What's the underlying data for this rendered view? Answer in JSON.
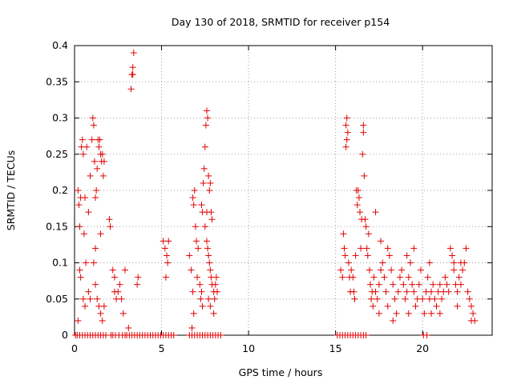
{
  "chart_data": {
    "type": "scatter",
    "title": "Day 130 of 2018, SRMTID for receiver p154",
    "xlabel": "GPS time / hours",
    "ylabel": "SRMTID / TECUs",
    "xlim": [
      0,
      24
    ],
    "ylim": [
      0,
      0.4
    ],
    "x_ticks": [
      0,
      5,
      10,
      15,
      20
    ],
    "x_tick_labels": [
      "0",
      "5",
      "10",
      "15",
      "20"
    ],
    "y_ticks": [
      0,
      0.05,
      0.1,
      0.15,
      0.2,
      0.25,
      0.3,
      0.35,
      0.4
    ],
    "y_tick_labels": [
      "0",
      "0.05",
      "0.1",
      "0.15",
      "0.2",
      "0.25",
      "0.3",
      "0.35",
      "0.4"
    ],
    "grid": true,
    "marker": "+",
    "color": "#e00000",
    "series": [
      {
        "name": "SRMTID",
        "points": [
          [
            0.2,
            0.2
          ],
          [
            0.25,
            0.18
          ],
          [
            0.3,
            0.15
          ],
          [
            0.35,
            0.19
          ],
          [
            0.4,
            0.26
          ],
          [
            0.45,
            0.27
          ],
          [
            0.5,
            0.25
          ],
          [
            0.55,
            0.14
          ],
          [
            0.6,
            0.19
          ],
          [
            0.65,
            0.1
          ],
          [
            0.3,
            0.09
          ],
          [
            0.35,
            0.08
          ],
          [
            0.5,
            0.05
          ],
          [
            0.6,
            0.04
          ],
          [
            0.2,
            0.02
          ],
          [
            0.7,
            0.26
          ],
          [
            0.8,
            0.17
          ],
          [
            0.9,
            0.22
          ],
          [
            1.0,
            0.27
          ],
          [
            1.05,
            0.3
          ],
          [
            1.1,
            0.29
          ],
          [
            1.15,
            0.24
          ],
          [
            1.2,
            0.19
          ],
          [
            1.25,
            0.2
          ],
          [
            1.3,
            0.23
          ],
          [
            1.35,
            0.27
          ],
          [
            1.4,
            0.26
          ],
          [
            1.45,
            0.27
          ],
          [
            1.5,
            0.25
          ],
          [
            1.55,
            0.24
          ],
          [
            1.6,
            0.25
          ],
          [
            1.65,
            0.22
          ],
          [
            1.7,
            0.24
          ],
          [
            1.1,
            0.1
          ],
          [
            1.2,
            0.07
          ],
          [
            1.3,
            0.05
          ],
          [
            1.4,
            0.04
          ],
          [
            1.5,
            0.03
          ],
          [
            1.6,
            0.02
          ],
          [
            1.7,
            0.04
          ],
          [
            1.5,
            0.14
          ],
          [
            1.2,
            0.12
          ],
          [
            0.8,
            0.06
          ],
          [
            0.9,
            0.05
          ],
          [
            2.0,
            0.16
          ],
          [
            2.05,
            0.15
          ],
          [
            2.3,
            0.06
          ],
          [
            2.4,
            0.05
          ],
          [
            2.5,
            0.06
          ],
          [
            2.6,
            0.07
          ],
          [
            2.2,
            0.09
          ],
          [
            2.3,
            0.08
          ],
          [
            2.7,
            0.05
          ],
          [
            2.8,
            0.03
          ],
          [
            2.9,
            0.09
          ],
          [
            3.1,
            0.01
          ],
          [
            3.25,
            0.34
          ],
          [
            3.3,
            0.36
          ],
          [
            3.35,
            0.37
          ],
          [
            3.4,
            0.39
          ],
          [
            3.35,
            0.36
          ],
          [
            3.6,
            0.07
          ],
          [
            3.65,
            0.08
          ],
          [
            5.1,
            0.13
          ],
          [
            5.2,
            0.12
          ],
          [
            5.3,
            0.11
          ],
          [
            5.35,
            0.1
          ],
          [
            5.4,
            0.13
          ],
          [
            5.25,
            0.08
          ],
          [
            6.6,
            0.11
          ],
          [
            6.7,
            0.09
          ],
          [
            6.8,
            0.19
          ],
          [
            6.85,
            0.18
          ],
          [
            6.9,
            0.2
          ],
          [
            6.95,
            0.15
          ],
          [
            7.0,
            0.13
          ],
          [
            7.05,
            0.08
          ],
          [
            6.8,
            0.06
          ],
          [
            6.85,
            0.03
          ],
          [
            6.75,
            0.01
          ],
          [
            7.1,
            0.12
          ],
          [
            7.2,
            0.07
          ],
          [
            7.25,
            0.05
          ],
          [
            7.3,
            0.06
          ],
          [
            7.35,
            0.04
          ],
          [
            7.3,
            0.18
          ],
          [
            7.35,
            0.17
          ],
          [
            7.4,
            0.21
          ],
          [
            7.45,
            0.23
          ],
          [
            7.5,
            0.26
          ],
          [
            7.55,
            0.29
          ],
          [
            7.6,
            0.31
          ],
          [
            7.65,
            0.3
          ],
          [
            7.7,
            0.22
          ],
          [
            7.75,
            0.2
          ],
          [
            7.8,
            0.21
          ],
          [
            7.85,
            0.17
          ],
          [
            7.9,
            0.16
          ],
          [
            7.5,
            0.15
          ],
          [
            7.6,
            0.13
          ],
          [
            7.65,
            0.12
          ],
          [
            7.7,
            0.11
          ],
          [
            7.75,
            0.1
          ],
          [
            7.8,
            0.09
          ],
          [
            7.85,
            0.08
          ],
          [
            7.9,
            0.07
          ],
          [
            8.0,
            0.06
          ],
          [
            8.1,
            0.07
          ],
          [
            8.15,
            0.08
          ],
          [
            8.2,
            0.06
          ],
          [
            7.7,
            0.05
          ],
          [
            7.8,
            0.04
          ],
          [
            8.0,
            0.03
          ],
          [
            7.6,
            0.17
          ],
          [
            8.05,
            0.05
          ],
          [
            15.3,
            0.09
          ],
          [
            15.4,
            0.08
          ],
          [
            15.45,
            0.14
          ],
          [
            15.5,
            0.12
          ],
          [
            15.55,
            0.11
          ],
          [
            15.6,
            0.29
          ],
          [
            15.65,
            0.3
          ],
          [
            15.7,
            0.28
          ],
          [
            15.65,
            0.27
          ],
          [
            15.6,
            0.26
          ],
          [
            15.75,
            0.1
          ],
          [
            15.8,
            0.08
          ],
          [
            15.9,
            0.09
          ],
          [
            15.85,
            0.06
          ],
          [
            16.0,
            0.08
          ],
          [
            16.05,
            0.06
          ],
          [
            16.1,
            0.05
          ],
          [
            16.15,
            0.11
          ],
          [
            16.2,
            0.2
          ],
          [
            16.25,
            0.18
          ],
          [
            16.3,
            0.2
          ],
          [
            16.35,
            0.19
          ],
          [
            16.4,
            0.17
          ],
          [
            16.45,
            0.12
          ],
          [
            16.5,
            0.16
          ],
          [
            16.55,
            0.25
          ],
          [
            16.6,
            0.28
          ],
          [
            16.6,
            0.29
          ],
          [
            16.65,
            0.22
          ],
          [
            16.7,
            0.16
          ],
          [
            16.75,
            0.15
          ],
          [
            16.8,
            0.12
          ],
          [
            16.85,
            0.11
          ],
          [
            16.9,
            0.14
          ],
          [
            16.95,
            0.09
          ],
          [
            17.0,
            0.07
          ],
          [
            17.05,
            0.05
          ],
          [
            17.1,
            0.06
          ],
          [
            17.15,
            0.04
          ],
          [
            17.2,
            0.08
          ],
          [
            17.3,
            0.06
          ],
          [
            17.4,
            0.05
          ],
          [
            17.5,
            0.07
          ],
          [
            17.6,
            0.09
          ],
          [
            17.7,
            0.1
          ],
          [
            17.8,
            0.08
          ],
          [
            17.9,
            0.06
          ],
          [
            18.0,
            0.04
          ],
          [
            18.1,
            0.11
          ],
          [
            18.2,
            0.09
          ],
          [
            18.3,
            0.07
          ],
          [
            18.4,
            0.05
          ],
          [
            18.5,
            0.03
          ],
          [
            18.6,
            0.06
          ],
          [
            18.7,
            0.08
          ],
          [
            18.8,
            0.09
          ],
          [
            18.9,
            0.07
          ],
          [
            19.0,
            0.05
          ],
          [
            19.1,
            0.06
          ],
          [
            19.2,
            0.08
          ],
          [
            19.3,
            0.1
          ],
          [
            19.4,
            0.07
          ],
          [
            19.5,
            0.06
          ],
          [
            19.6,
            0.04
          ],
          [
            19.7,
            0.05
          ],
          [
            19.8,
            0.07
          ],
          [
            19.9,
            0.09
          ],
          [
            20.0,
            0.05
          ],
          [
            20.1,
            0.03
          ],
          [
            20.2,
            0.06
          ],
          [
            20.3,
            0.08
          ],
          [
            20.4,
            0.05
          ],
          [
            20.5,
            0.06
          ],
          [
            20.6,
            0.07
          ],
          [
            20.7,
            0.05
          ],
          [
            20.8,
            0.04
          ],
          [
            20.9,
            0.06
          ],
          [
            21.0,
            0.07
          ],
          [
            21.1,
            0.05
          ],
          [
            21.2,
            0.06
          ],
          [
            21.3,
            0.08
          ],
          [
            21.4,
            0.07
          ],
          [
            21.5,
            0.06
          ],
          [
            21.6,
            0.12
          ],
          [
            21.7,
            0.11
          ],
          [
            21.8,
            0.09
          ],
          [
            21.9,
            0.07
          ],
          [
            22.0,
            0.06
          ],
          [
            22.1,
            0.08
          ],
          [
            22.2,
            0.07
          ],
          [
            22.3,
            0.09
          ],
          [
            22.4,
            0.1
          ],
          [
            22.5,
            0.12
          ],
          [
            22.6,
            0.06
          ],
          [
            22.7,
            0.05
          ],
          [
            22.8,
            0.04
          ],
          [
            22.9,
            0.03
          ],
          [
            23.0,
            0.02
          ],
          [
            17.3,
            0.17
          ],
          [
            17.6,
            0.13
          ],
          [
            18.0,
            0.12
          ],
          [
            19.1,
            0.11
          ],
          [
            19.5,
            0.12
          ],
          [
            20.4,
            0.1
          ],
          [
            21.8,
            0.1
          ],
          [
            22.2,
            0.1
          ],
          [
            17.5,
            0.03
          ],
          [
            18.3,
            0.02
          ],
          [
            19.2,
            0.03
          ],
          [
            20.5,
            0.03
          ],
          [
            21.0,
            0.03
          ],
          [
            22.0,
            0.04
          ],
          [
            22.8,
            0.02
          ]
        ],
        "zero_points_x": [
          0.05,
          0.15,
          0.3,
          0.45,
          0.6,
          0.75,
          0.9,
          1.05,
          1.2,
          1.35,
          1.5,
          1.65,
          1.8,
          2.1,
          2.2,
          2.35,
          2.55,
          2.75,
          2.9,
          3.0,
          3.15,
          3.3,
          3.45,
          3.6,
          3.75,
          3.9,
          4.05,
          4.2,
          4.35,
          4.5,
          4.65,
          4.8,
          4.95,
          5.1,
          5.25,
          5.4,
          5.55,
          5.7,
          6.6,
          6.75,
          6.9,
          7.05,
          7.2,
          7.35,
          7.5,
          7.65,
          7.8,
          7.95,
          8.1,
          8.25,
          8.4,
          15.1,
          15.25,
          15.4,
          15.55,
          15.7,
          15.85,
          16.0,
          16.15,
          16.3,
          16.45,
          16.6,
          16.75,
          20.05,
          20.25
        ]
      }
    ]
  }
}
